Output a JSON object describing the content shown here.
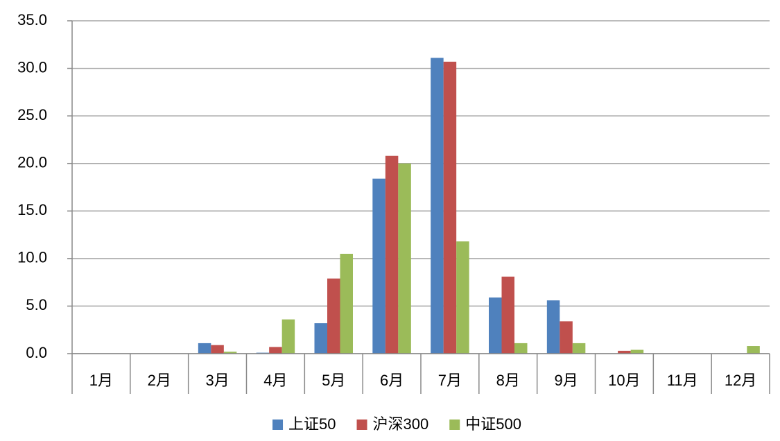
{
  "chart_data": {
    "type": "bar",
    "categories": [
      "1月",
      "2月",
      "3月",
      "4月",
      "5月",
      "6月",
      "7月",
      "8月",
      "9月",
      "10月",
      "11月",
      "12月"
    ],
    "series": [
      {
        "name": "上证50",
        "color": "#4f81bd",
        "values": [
          0,
          0,
          1.1,
          0.1,
          3.2,
          18.4,
          31.1,
          5.9,
          5.6,
          0,
          0,
          0
        ]
      },
      {
        "name": "沪深300",
        "color": "#c0504d",
        "values": [
          0,
          0,
          0.9,
          0.7,
          7.9,
          20.8,
          30.7,
          8.1,
          3.4,
          0.3,
          0,
          0
        ]
      },
      {
        "name": "中证500",
        "color": "#9bbb59",
        "values": [
          0,
          0,
          0.2,
          3.6,
          10.5,
          20.0,
          11.8,
          1.1,
          1.1,
          0.4,
          0,
          0.8
        ]
      }
    ],
    "ylim": [
      0,
      35
    ],
    "yticks": [
      {
        "value": 0,
        "label": "0.0"
      },
      {
        "value": 5,
        "label": "5.0"
      },
      {
        "value": 10,
        "label": "10.0"
      },
      {
        "value": 15,
        "label": "15.0"
      },
      {
        "value": 20,
        "label": "20.0"
      },
      {
        "value": 25,
        "label": "25.0"
      },
      {
        "value": 30,
        "label": "30.0"
      },
      {
        "value": 35,
        "label": "35.0"
      }
    ],
    "grid": true,
    "legend": "bottom"
  }
}
